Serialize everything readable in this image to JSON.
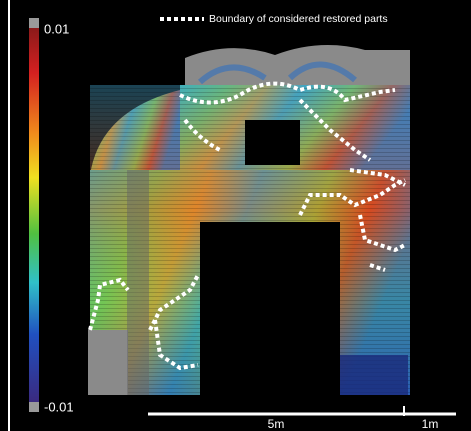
{
  "colorbar": {
    "max": 0.01,
    "min": -0.01
  },
  "legend": {
    "label": "Boundary of considered restored parts"
  },
  "scale_bar": {
    "labels": [
      "5m",
      "1m"
    ]
  }
}
